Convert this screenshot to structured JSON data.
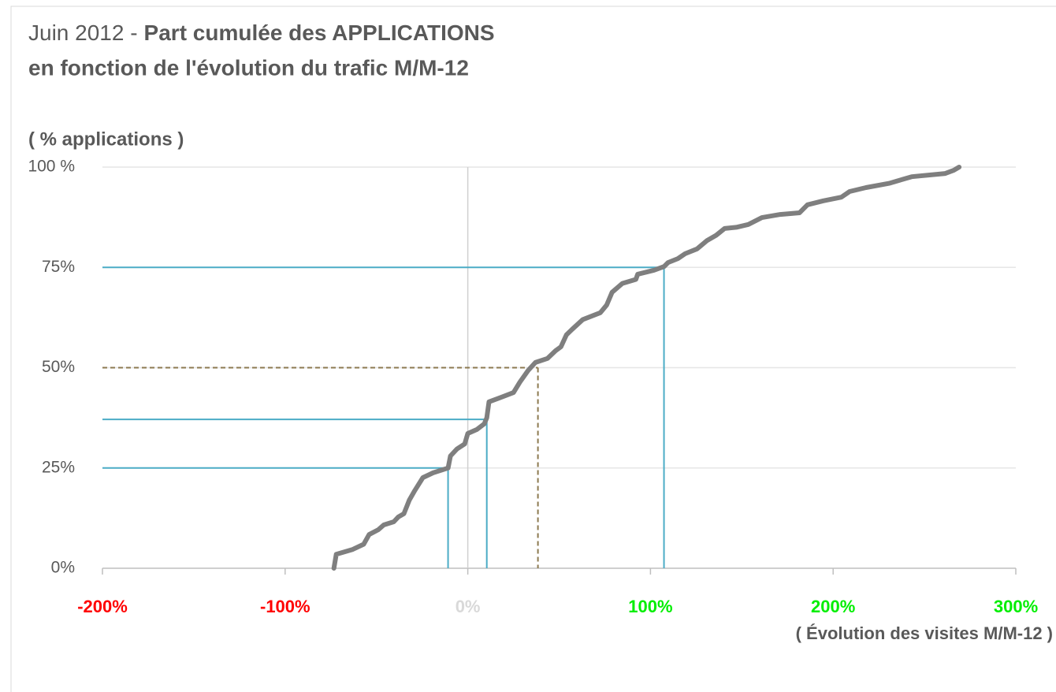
{
  "chart_data": {
    "type": "line",
    "title_prefix": "Juin 2012 -",
    "title": "Part cumulée des APPLICATIONS",
    "subtitle": "en fonction de l'évolution du trafic M/M-12",
    "ylabel": "( % applications )",
    "xlabel": "( Évolution des visites M/M-12 )",
    "x": [
      -73.3,
      -72,
      -63,
      -57,
      -54,
      -49,
      -46,
      -40.5,
      -38,
      -35,
      -32,
      -29,
      -24.6,
      -19,
      -10.8,
      -9.5,
      -6,
      -1.7,
      0,
      5,
      9,
      10.4,
      11.6,
      17,
      25,
      28.5,
      33,
      37,
      43.6,
      48,
      51,
      54,
      57,
      63,
      72.5,
      76,
      79,
      84.6,
      92,
      93,
      102,
      107.4,
      109.6,
      115,
      119,
      125.5,
      131,
      136,
      140.6,
      147,
      153.6,
      161,
      171,
      181.6,
      186,
      194.6,
      204.5,
      209,
      218,
      231,
      243,
      261.4,
      266,
      269
    ],
    "values": [
      0,
      3.5,
      4.7,
      6,
      8.4,
      9.6,
      10.8,
      11.6,
      12.8,
      13.6,
      17,
      19.4,
      22.6,
      23.8,
      25,
      28,
      29.7,
      31,
      33.6,
      34.6,
      36,
      37.5,
      41.5,
      42.4,
      43.8,
      46.4,
      49.3,
      51.3,
      52.3,
      54.2,
      55.2,
      58.2,
      59.5,
      62,
      63.7,
      65.6,
      68.8,
      71,
      72,
      73.3,
      74.3,
      75.2,
      76.2,
      77.2,
      78.4,
      79.6,
      81.7,
      83,
      84.7,
      85,
      85.7,
      87.4,
      88.2,
      88.6,
      90.6,
      91.6,
      92.5,
      93.9,
      94.9,
      96,
      97.6,
      98.4,
      99.2,
      100
    ],
    "color": "#7f7f7f",
    "xlim": [
      -200,
      300
    ],
    "xticks": [
      {
        "value": -200,
        "label": "-200%"
      },
      {
        "value": -100,
        "label": "-100%"
      },
      {
        "value": 0,
        "label": "0%"
      },
      {
        "value": 100,
        "label": "100%"
      },
      {
        "value": 200,
        "label": "200%"
      },
      {
        "value": 300,
        "label": "300%"
      }
    ],
    "xtick_colors": [
      "#ff0000",
      "#ff0000",
      "#d9d9d9",
      "#00ee00",
      "#00ee00",
      "#00ee00"
    ],
    "ylim": [
      0,
      100
    ],
    "yticks": [
      {
        "value": 0,
        "label": "0%"
      },
      {
        "value": 25,
        "label": "25%"
      },
      {
        "value": 50,
        "label": "50%"
      },
      {
        "value": 75,
        "label": "75%"
      },
      {
        "value": 100,
        "label": "100 %"
      }
    ],
    "grid": true,
    "reference_lines": [
      {
        "x": -10.8,
        "y": 25,
        "color": "#4bacc6",
        "dashed": false
      },
      {
        "x": 10.4,
        "y": 37.1,
        "color": "#4bacc6",
        "dashed": false
      },
      {
        "x": 38.4,
        "y": 50,
        "color": "#8c7a50",
        "dashed": true
      },
      {
        "x": 107.4,
        "y": 75,
        "color": "#4bacc6",
        "dashed": false
      }
    ]
  }
}
